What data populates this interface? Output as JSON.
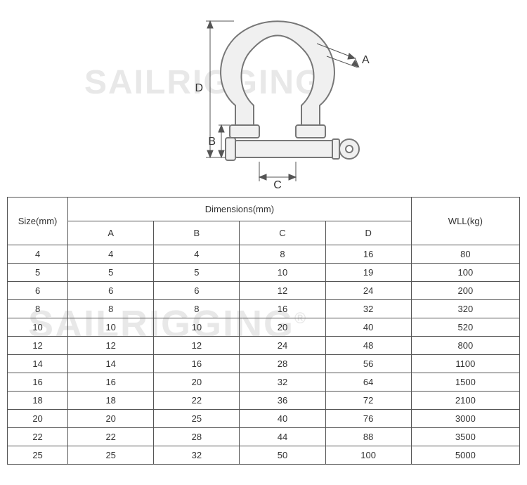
{
  "diagram": {
    "labels": {
      "A": "A",
      "B": "B",
      "C": "C",
      "D": "D"
    },
    "stroke": "#777777",
    "fill": "#f0f0f0",
    "dim_stroke": "#555555"
  },
  "watermark": {
    "text": "SAILRIGGING",
    "registered": "®",
    "color": "#e8e8e8"
  },
  "table": {
    "headers": {
      "size": "Size(mm)",
      "dimensions": "Dimensions(mm)",
      "wll": "WLL(kg)",
      "A": "A",
      "B": "B",
      "C": "C",
      "D": "D"
    },
    "rows": [
      {
        "size": "4",
        "A": "4",
        "B": "4",
        "C": "8",
        "D": "16",
        "wll": "80"
      },
      {
        "size": "5",
        "A": "5",
        "B": "5",
        "C": "10",
        "D": "19",
        "wll": "100"
      },
      {
        "size": "6",
        "A": "6",
        "B": "6",
        "C": "12",
        "D": "24",
        "wll": "200"
      },
      {
        "size": "8",
        "A": "8",
        "B": "8",
        "C": "16",
        "D": "32",
        "wll": "320"
      },
      {
        "size": "10",
        "A": "10",
        "B": "10",
        "C": "20",
        "D": "40",
        "wll": "520"
      },
      {
        "size": "12",
        "A": "12",
        "B": "12",
        "C": "24",
        "D": "48",
        "wll": "800"
      },
      {
        "size": "14",
        "A": "14",
        "B": "16",
        "C": "28",
        "D": "56",
        "wll": "1100"
      },
      {
        "size": "16",
        "A": "16",
        "B": "20",
        "C": "32",
        "D": "64",
        "wll": "1500"
      },
      {
        "size": "18",
        "A": "18",
        "B": "22",
        "C": "36",
        "D": "72",
        "wll": "2100"
      },
      {
        "size": "20",
        "A": "20",
        "B": "25",
        "C": "40",
        "D": "76",
        "wll": "3000"
      },
      {
        "size": "22",
        "A": "22",
        "B": "28",
        "C": "44",
        "D": "88",
        "wll": "3500"
      },
      {
        "size": "25",
        "A": "25",
        "B": "32",
        "C": "50",
        "D": "100",
        "wll": "5000"
      }
    ]
  }
}
